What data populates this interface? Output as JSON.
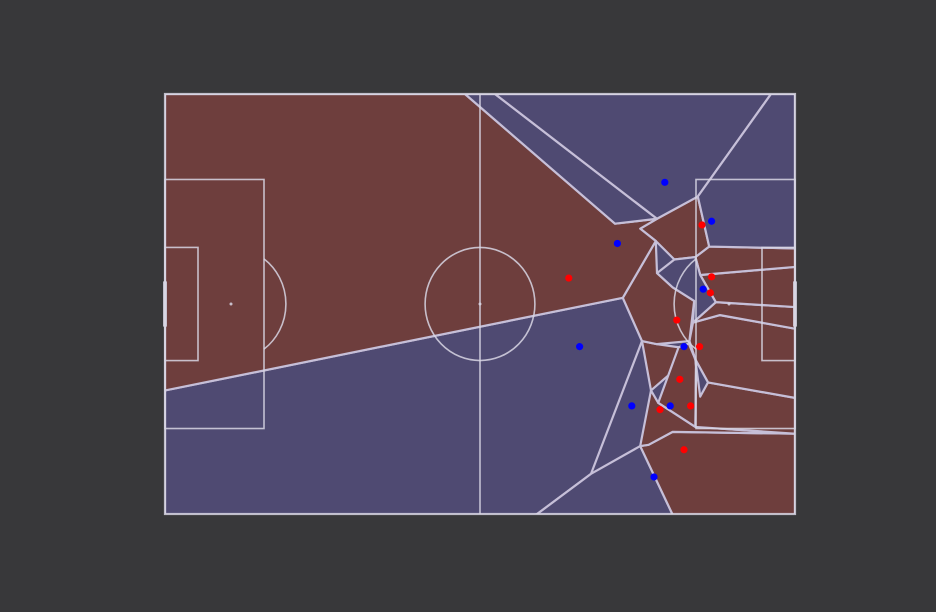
{
  "colors": {
    "background": "#38383a",
    "team_red_region": "#6e3e3d",
    "team_blue_region": "#4f4a72",
    "pitch_lines": "#d8d6e4",
    "cell_edges": "#c6bfd8",
    "red_player": "#ff0000",
    "blue_player": "#0000ff"
  },
  "pitch": {
    "length_m": 105,
    "width_m": 68
  },
  "regions": [
    {
      "team": "blue",
      "points": [
        [
          0,
          68
        ],
        [
          0,
          48
        ],
        [
          76.3,
          33
        ],
        [
          79.5,
          40
        ],
        [
          71,
          61.5
        ],
        [
          56.5,
          72
        ],
        [
          0,
          72
        ]
      ]
    },
    {
      "team": "blue",
      "points": [
        [
          56.5,
          72
        ],
        [
          71,
          61.5
        ],
        [
          79.2,
          57
        ],
        [
          86.5,
          72
        ]
      ]
    },
    {
      "team": "red",
      "points": [
        [
          86.5,
          72
        ],
        [
          79.2,
          57
        ],
        [
          80.6,
          56.8
        ],
        [
          84.6,
          54.7
        ],
        [
          105,
          55
        ],
        [
          105,
          72
        ]
      ]
    },
    {
      "team": "red",
      "points": [
        [
          84.6,
          54.7
        ],
        [
          80.6,
          56.8
        ],
        [
          79.2,
          57
        ],
        [
          81,
          48
        ],
        [
          82.2,
          50
        ],
        [
          88.4,
          53.9
        ],
        [
          105,
          55
        ]
      ]
    },
    {
      "team": "red",
      "points": [
        [
          81,
          48
        ],
        [
          79.5,
          40
        ],
        [
          82,
          40.5
        ],
        [
          85.6,
          41
        ],
        [
          88,
          42.1
        ]
      ]
    },
    {
      "team": "red",
      "points": [
        [
          82.2,
          50
        ],
        [
          85.6,
          41
        ],
        [
          87.3,
          40.4
        ],
        [
          88.4,
          43
        ],
        [
          88.5,
          44.3
        ],
        [
          88.4,
          53.9
        ]
      ]
    },
    {
      "team": "red",
      "points": [
        [
          88.4,
          53.9
        ],
        [
          88.5,
          44.3
        ],
        [
          90.5,
          46.7
        ],
        [
          105,
          49.2
        ],
        [
          105,
          55
        ]
      ]
    },
    {
      "team": "red",
      "points": [
        [
          90.5,
          46.7
        ],
        [
          88.4,
          43
        ],
        [
          87.4,
          40
        ],
        [
          88,
          37
        ],
        [
          92.5,
          35.8
        ],
        [
          105,
          38
        ],
        [
          105,
          49.2
        ]
      ]
    },
    {
      "team": "blue",
      "points": [
        [
          87.4,
          40
        ],
        [
          88.4,
          43
        ],
        [
          90.5,
          46.7
        ],
        [
          89.2,
          49
        ],
        [
          88.4,
          43
        ]
      ]
    },
    {
      "team": "red",
      "points": [
        [
          88,
          37
        ],
        [
          91.8,
          33.7
        ],
        [
          105,
          34.5
        ],
        [
          105,
          38
        ],
        [
          92.5,
          35.8
        ]
      ]
    },
    {
      "team": "red",
      "points": [
        [
          91.8,
          33.7
        ],
        [
          89.2,
          29.3
        ],
        [
          105,
          28
        ],
        [
          105,
          34.5
        ]
      ]
    },
    {
      "team": "red",
      "points": [
        [
          89.2,
          29.3
        ],
        [
          88.4,
          26.4
        ],
        [
          90.7,
          24.7
        ],
        [
          105,
          25
        ],
        [
          105,
          28
        ]
      ]
    },
    {
      "team": "red",
      "points": [
        [
          88.4,
          26.4
        ],
        [
          84.9,
          26.8
        ],
        [
          81.8,
          23.8
        ],
        [
          79.2,
          21.8
        ],
        [
          82,
          20.2
        ],
        [
          88.8,
          16.6
        ],
        [
          90.7,
          24.7
        ]
      ]
    },
    {
      "team": "red",
      "points": [
        [
          81.8,
          23.8
        ],
        [
          82,
          29
        ],
        [
          84.6,
          31.3
        ],
        [
          88.2,
          33.5
        ],
        [
          87.4,
          40
        ],
        [
          82,
          40.5
        ],
        [
          79.5,
          40
        ],
        [
          76.3,
          33
        ]
      ]
    },
    {
      "team": "blue",
      "points": [
        [
          88.2,
          33.5
        ],
        [
          84.6,
          31.3
        ],
        [
          82,
          29
        ],
        [
          84.9,
          26.8
        ],
        [
          88.4,
          26.4
        ],
        [
          89.2,
          29.3
        ],
        [
          91.8,
          33.7
        ],
        [
          88,
          37
        ]
      ]
    },
    {
      "team": "red",
      "points": [
        [
          82,
          20.2
        ],
        [
          79.2,
          21.8
        ],
        [
          81.8,
          23.8
        ],
        [
          76.3,
          33
        ],
        [
          0,
          48
        ],
        [
          0,
          0
        ],
        [
          50,
          0
        ],
        [
          75,
          21
        ]
      ]
    },
    {
      "team": "blue",
      "points": [
        [
          50,
          0
        ],
        [
          55,
          0
        ],
        [
          82,
          20.2
        ],
        [
          75,
          21
        ]
      ]
    },
    {
      "team": "blue",
      "points": [
        [
          55,
          0
        ],
        [
          101,
          0
        ],
        [
          88.8,
          16.6
        ],
        [
          82,
          20.2
        ]
      ]
    },
    {
      "team": "blue",
      "points": [
        [
          101,
          0
        ],
        [
          105,
          0
        ],
        [
          105,
          25
        ],
        [
          90.7,
          24.7
        ],
        [
          88.8,
          16.6
        ]
      ]
    }
  ],
  "players": [
    {
      "team": "blue",
      "x": 81.5,
      "y": 62
    },
    {
      "team": "red",
      "x": 86.5,
      "y": 57.6
    },
    {
      "team": "red",
      "x": 82.5,
      "y": 51.1
    },
    {
      "team": "blue",
      "x": 77.8,
      "y": 50.5
    },
    {
      "team": "blue",
      "x": 84.2,
      "y": 50.5
    },
    {
      "team": "red",
      "x": 87.6,
      "y": 50.5
    },
    {
      "team": "red",
      "x": 85.8,
      "y": 46.2
    },
    {
      "team": "blue",
      "x": 69.1,
      "y": 40.9
    },
    {
      "team": "blue",
      "x": 86.5,
      "y": 40.9
    },
    {
      "team": "red",
      "x": 89.1,
      "y": 40.9
    },
    {
      "team": "red",
      "x": 85.3,
      "y": 36.6
    },
    {
      "team": "red",
      "x": 67.3,
      "y": 29.8
    },
    {
      "team": "blue",
      "x": 89.7,
      "y": 31.6
    },
    {
      "team": "red",
      "x": 90.9,
      "y": 32.2
    },
    {
      "team": "red",
      "x": 91.1,
      "y": 29.6
    },
    {
      "team": "blue",
      "x": 75.4,
      "y": 24.2
    },
    {
      "team": "red",
      "x": 89.5,
      "y": 21.2
    },
    {
      "team": "blue",
      "x": 91.1,
      "y": 20.6
    },
    {
      "team": "blue",
      "x": 83.3,
      "y": 14.3
    }
  ]
}
